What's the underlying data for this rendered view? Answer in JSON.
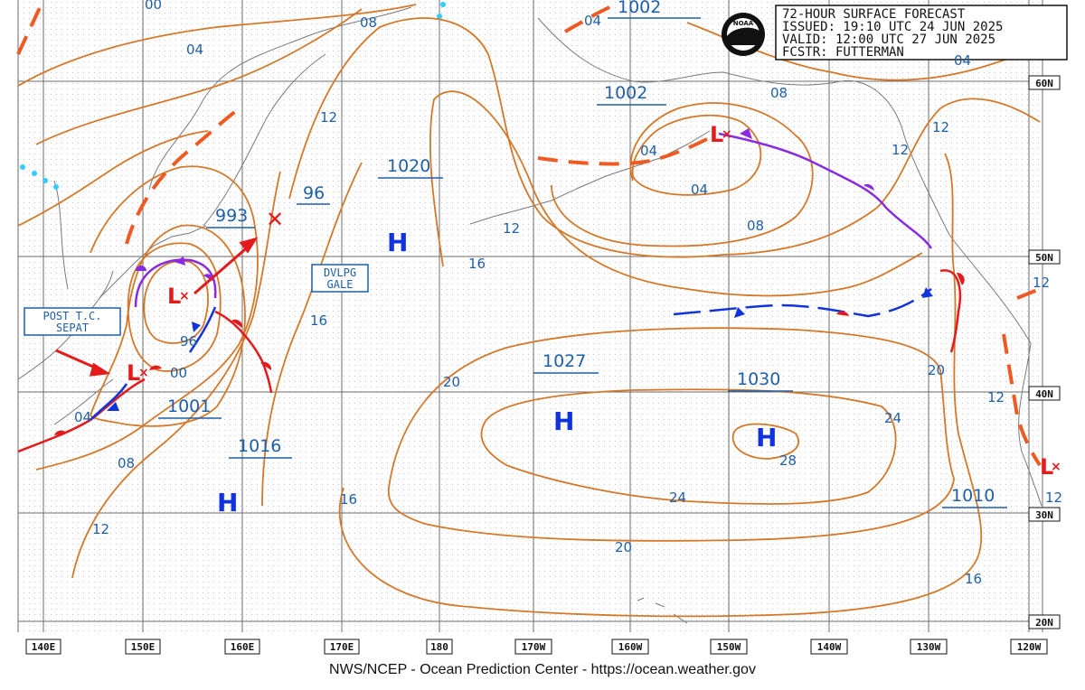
{
  "title_block": {
    "lines": [
      "72-HOUR SURFACE FORECAST",
      "ISSUED: 19:10 UTC 24 JUN 2025",
      "VALID:  12:00 UTC 27 JUN 2025",
      "FCSTR:  FUTTERMAN"
    ],
    "logo": "NOAA"
  },
  "footer": "NWS/NCEP - Ocean Prediction Center - https://ocean.weather.gov",
  "longitude_labels": [
    "140E",
    "150E",
    "160E",
    "170E",
    "180",
    "170W",
    "160W",
    "150W",
    "140W",
    "130W",
    "120W"
  ],
  "latitude_labels": [
    "60N",
    "50N",
    "40N",
    "30N",
    "20N"
  ],
  "pressure_centers": [
    {
      "type": "H",
      "value": "1020"
    },
    {
      "type": "H",
      "value": "1016"
    },
    {
      "type": "H",
      "value": "1027"
    },
    {
      "type": "H",
      "value": "1030"
    },
    {
      "type": "L",
      "value": "993"
    },
    {
      "type": "L",
      "value": "1001"
    },
    {
      "type": "L",
      "value": "1002"
    },
    {
      "type": "L",
      "value": "1010"
    }
  ],
  "center_labels": {
    "p1002_top": "1002",
    "p1002": "1002",
    "p1020": "1020",
    "p993": "993",
    "p96": "96",
    "p1001": "1001",
    "p1016": "1016",
    "p1027": "1027",
    "p1030": "1030",
    "p1010": "1010"
  },
  "symbols": {
    "high": "H",
    "low": "L",
    "cross": "×",
    "x": "✕"
  },
  "isobar_labels": {
    "a00": "00",
    "a04": "04",
    "a08": "08",
    "a12": "12",
    "a04b": "04",
    "a04c": "04",
    "a08b": "08",
    "a12b": "12",
    "a12c": "12",
    "a04d": "04",
    "a08c": "08",
    "a12d": "12",
    "a16": "16",
    "a16b": "16",
    "a96": "96",
    "a00b": "00",
    "a04e": "04",
    "a08d": "08",
    "a12e": "12",
    "a20": "20",
    "a24": "24",
    "a28": "28",
    "a24b": "24",
    "a20b": "20",
    "a16c": "16",
    "a20c": "20",
    "a16d": "16",
    "a12f": "12",
    "a12g": "12",
    "a12h": "12",
    "a04f": "04"
  },
  "annotations": {
    "gale": [
      "DVLPG",
      "GALE"
    ],
    "post_tc": [
      "POST T.C.",
      "SEPAT"
    ]
  },
  "colors": {
    "isobar": "#d5782a",
    "labels": "#1f5fa8",
    "high": "#1133dd",
    "low": "#e41b1b",
    "warm_front": "#e41b1b",
    "cold_front": "#1133dd",
    "occluded_front": "#8a2be2",
    "trough": "#f05a22",
    "ice": "#33ccff"
  }
}
